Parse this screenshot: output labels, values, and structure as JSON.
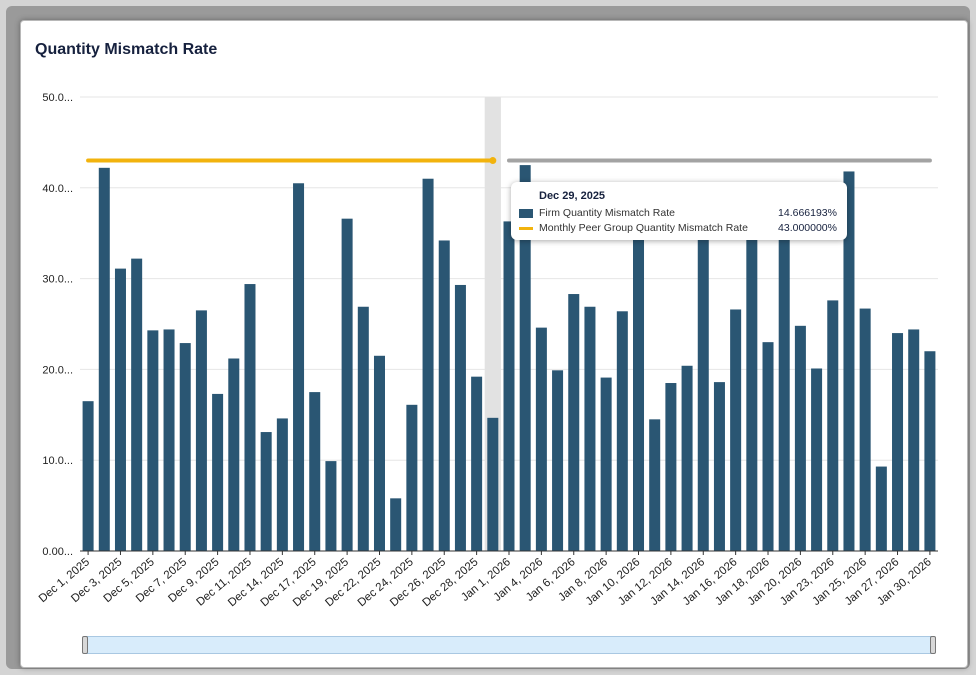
{
  "title": "Quantity Mismatch Rate",
  "colors": {
    "bar": "#2a5673",
    "peer_line": "#f2b30d",
    "peer_line_dim": "#a3a3a3",
    "hover_band": "#e2e2e2"
  },
  "tooltip": {
    "date": "Dec 29, 2025",
    "rows": [
      {
        "label": "Firm Quantity Mismatch Rate",
        "value": "14.666193%",
        "swatch": "bar"
      },
      {
        "label": "Monthly Peer Group Quantity Mismatch Rate",
        "value": "43.000000%",
        "swatch": "line"
      }
    ]
  },
  "chart_data": {
    "type": "bar",
    "ylim": [
      0,
      50
    ],
    "y_ticks": [
      "0.00...",
      "10.0...",
      "20.0...",
      "30.0...",
      "40.0...",
      "50.0..."
    ],
    "x_tick_labels": [
      "Dec 1, 2025",
      "Dec 3, 2025",
      "Dec 5, 2025",
      "Dec 7, 2025",
      "Dec 9, 2025",
      "Dec 11, 2025",
      "Dec 14, 2025",
      "Dec 17, 2025",
      "Dec 19, 2025",
      "Dec 22, 2025",
      "Dec 24, 2025",
      "Dec 26, 2025",
      "Dec 28, 2025",
      "Jan 1, 2026",
      "Jan 4, 2026",
      "Jan 6, 2026",
      "Jan 8, 2026",
      "Jan 10, 2026",
      "Jan 12, 2026",
      "Jan 14, 2026",
      "Jan 16, 2026",
      "Jan 18, 2026",
      "Jan 20, 2026",
      "Jan 23, 2026",
      "Jan 25, 2026",
      "Jan 27, 2026",
      "Jan 30, 2026"
    ],
    "series": [
      {
        "name": "Firm Quantity Mismatch Rate",
        "values": [
          16.5,
          42.2,
          31.1,
          32.2,
          24.3,
          24.4,
          22.9,
          26.5,
          17.3,
          21.2,
          29.4,
          13.1,
          14.6,
          40.5,
          17.5,
          9.9,
          36.6,
          26.9,
          21.5,
          5.8,
          16.1,
          41.0,
          34.2,
          29.3,
          19.2,
          14.666193,
          36.3,
          42.5,
          24.6,
          19.9,
          28.3,
          26.9,
          19.1,
          26.4,
          35.0,
          14.5,
          18.5,
          20.4,
          35.0,
          18.6,
          26.6,
          35.0,
          23.0,
          35.0,
          24.8,
          20.1,
          27.6,
          41.8,
          26.7,
          9.3,
          24.0,
          24.4,
          22.0
        ]
      },
      {
        "name": "Monthly Peer Group Quantity Mismatch Rate",
        "type": "line",
        "segments": [
          {
            "from_index": 0,
            "to_index": 25,
            "value": 43.0
          },
          {
            "from_index": 26,
            "to_index": 52,
            "value": 43.0
          }
        ]
      }
    ],
    "highlight_index": 25,
    "legend": "none"
  }
}
